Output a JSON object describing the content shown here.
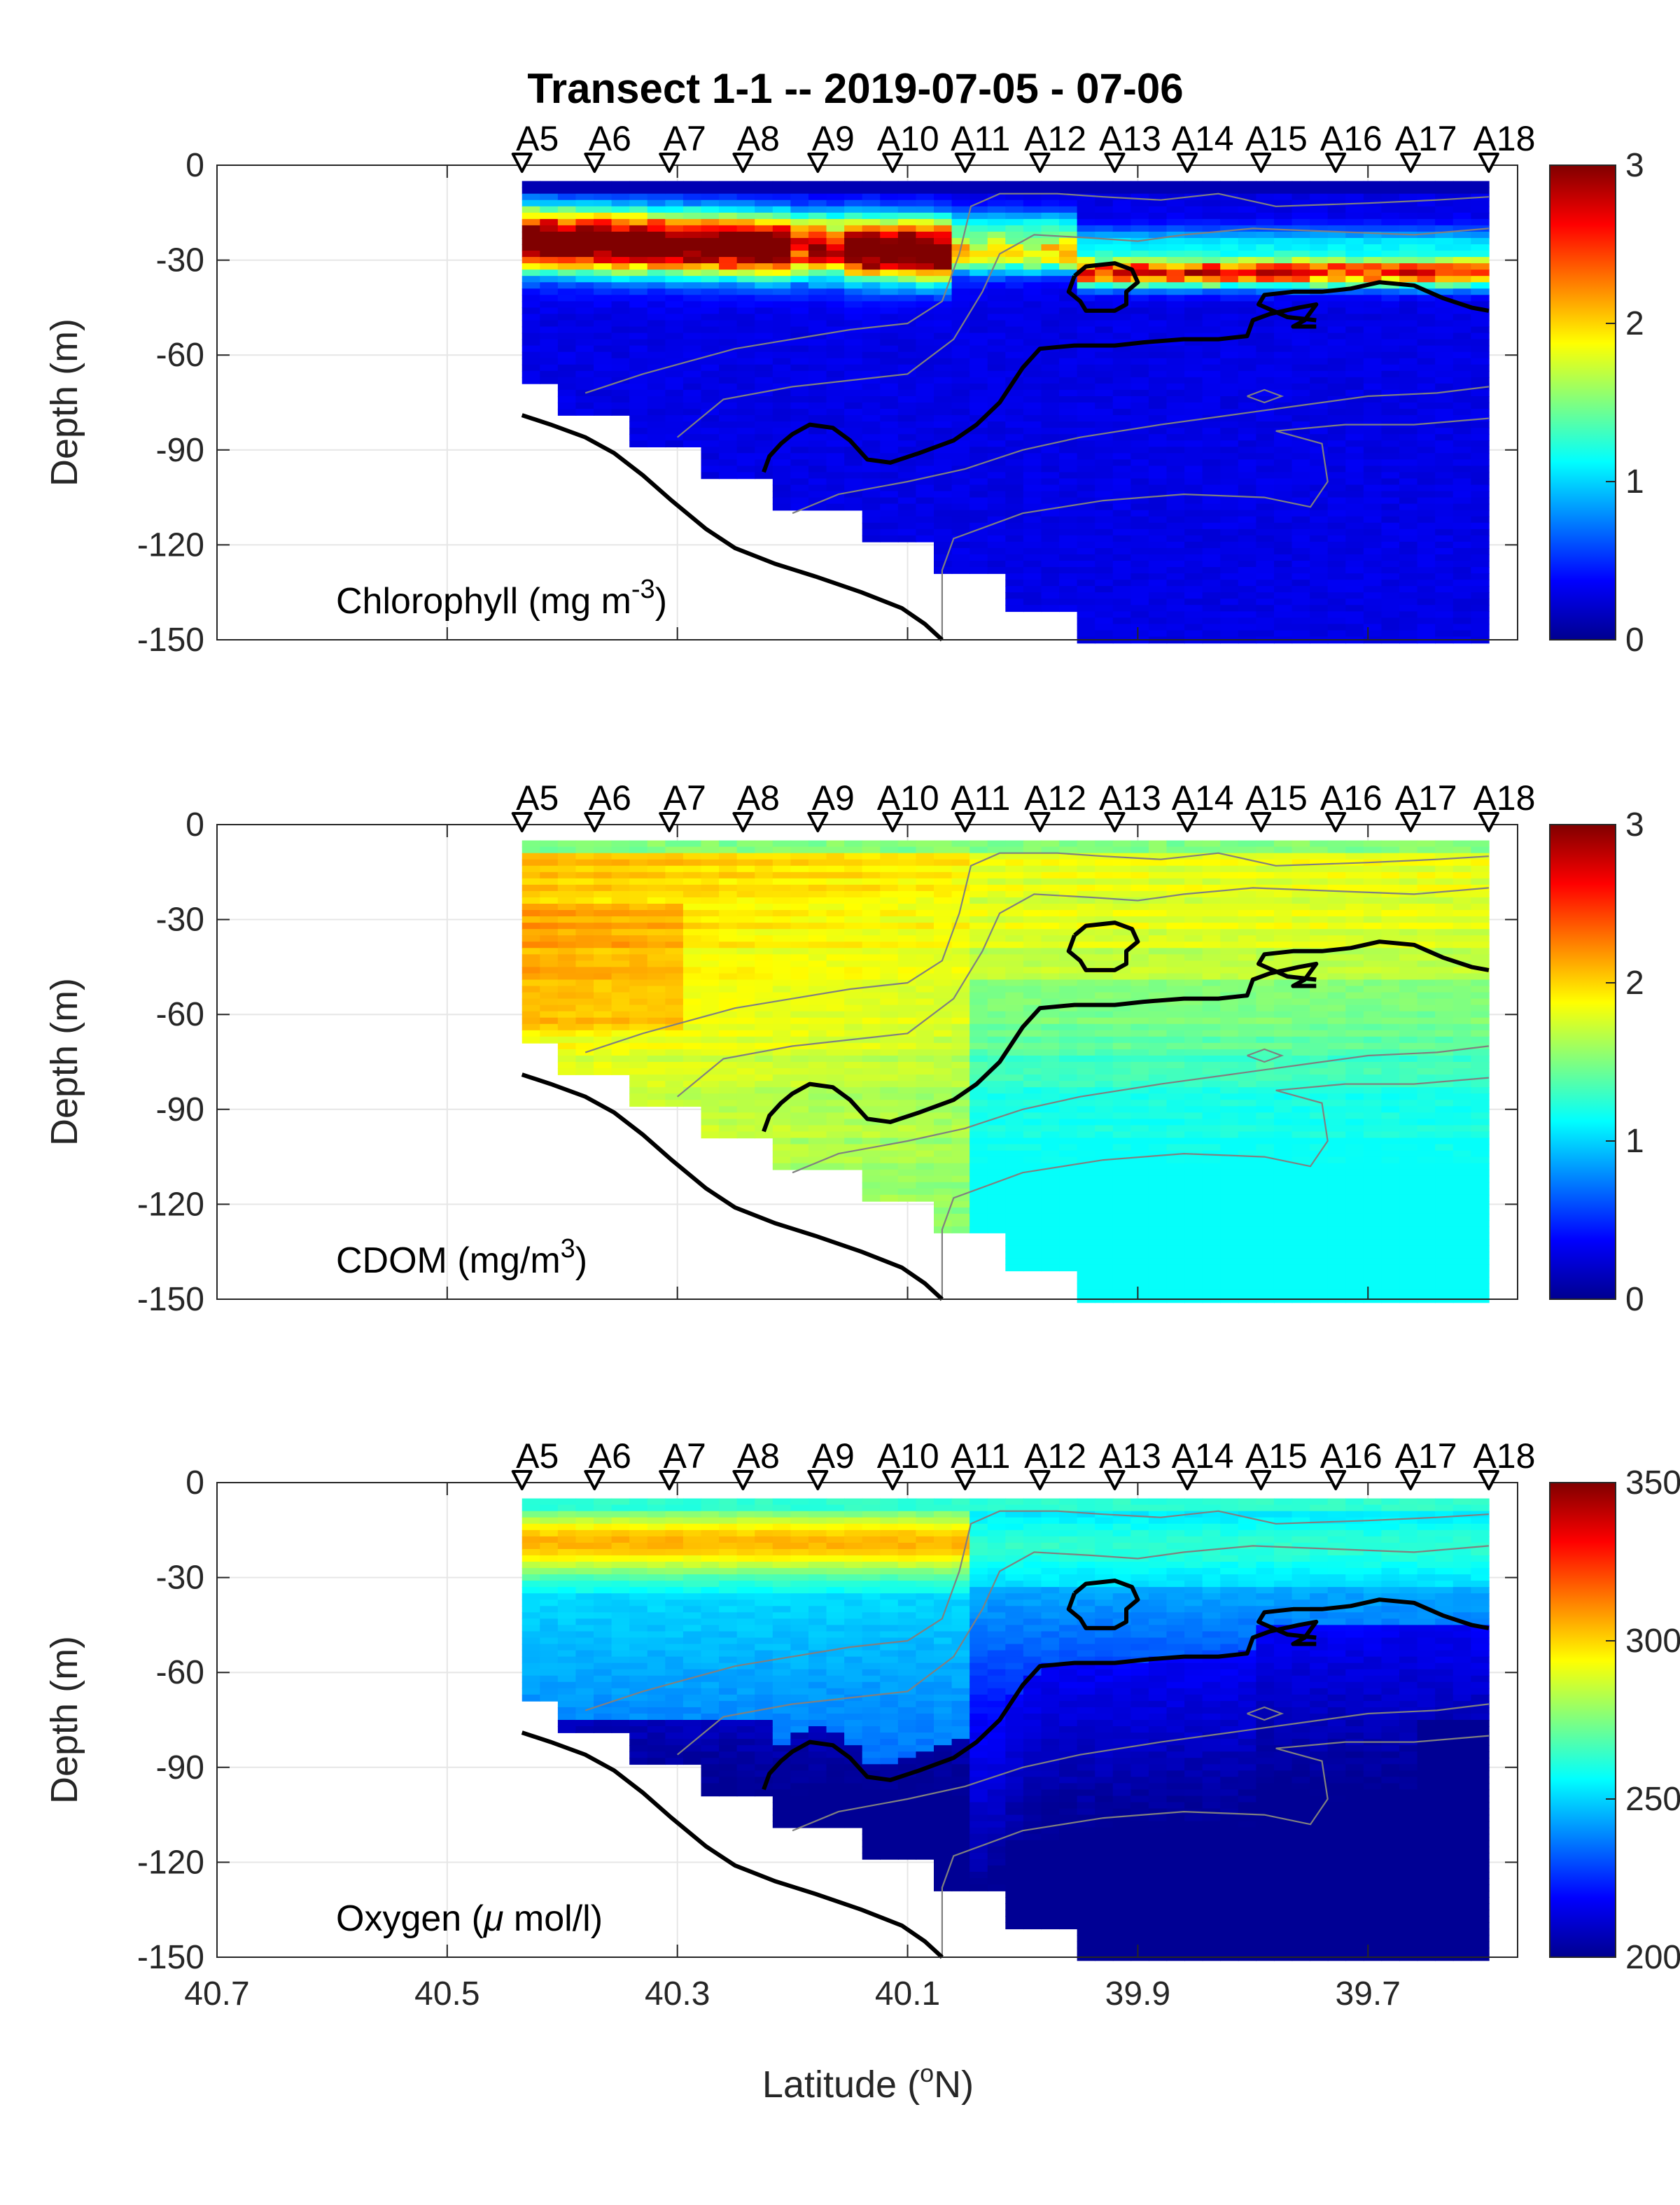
{
  "figure": {
    "title": "Transect 1-1 -- 2019-07-05 - 07-06",
    "xlabel_parts": [
      "Latitude (",
      "o",
      "N)"
    ]
  },
  "colors": {
    "bathymetry": "#000000",
    "isopycnal_bold": "#000000",
    "isoline_thin": "#808080",
    "grid": "#e6e6e6",
    "axes": "#262626",
    "colormap": "jet"
  },
  "chart_data": [
    {
      "type": "heatmap",
      "panel_label_parts": [
        "Chlorophyll (mg m",
        "-3",
        ")"
      ],
      "ylabel": "Depth (m)",
      "xlim": [
        39.57,
        40.7
      ],
      "x_reversed": true,
      "ylim": [
        -150,
        0
      ],
      "xticks": [
        "40.7",
        "40.5",
        "40.3",
        "40.1",
        "39.9",
        "39.7"
      ],
      "yticks": [
        "0",
        "-30",
        "-60",
        "-90",
        "-120",
        "-150"
      ],
      "grid": true,
      "colorbar": {
        "min": 0,
        "max": 3,
        "ticks": [
          "0",
          "1",
          "2",
          "3"
        ]
      },
      "field_profile": "chlorophyll"
    },
    {
      "type": "heatmap",
      "panel_label_parts": [
        "CDOM (mg/m",
        "3",
        ")"
      ],
      "ylabel": "Depth (m)",
      "xlim": [
        39.57,
        40.7
      ],
      "x_reversed": true,
      "ylim": [
        -150,
        0
      ],
      "xticks": [
        "40.7",
        "40.5",
        "40.3",
        "40.1",
        "39.9",
        "39.7"
      ],
      "yticks": [
        "0",
        "-30",
        "-60",
        "-90",
        "-120",
        "-150"
      ],
      "grid": true,
      "colorbar": {
        "min": 0,
        "max": 3,
        "ticks": [
          "0",
          "1",
          "2",
          "3"
        ]
      },
      "field_profile": "cdom"
    },
    {
      "type": "heatmap",
      "panel_label_parts": [
        "Oxygen (",
        "μ",
        " mol/l)"
      ],
      "ylabel": "Depth (m)",
      "xlabel": "Latitude (°N)",
      "xlim": [
        39.57,
        40.7
      ],
      "x_reversed": true,
      "ylim": [
        -150,
        0
      ],
      "xticks": [
        "40.7",
        "40.5",
        "40.3",
        "40.1",
        "39.9",
        "39.7"
      ],
      "yticks": [
        "0",
        "-30",
        "-60",
        "-90",
        "-120",
        "-150"
      ],
      "grid": true,
      "colorbar": {
        "min": 200,
        "max": 350,
        "ticks": [
          "200",
          "250",
          "300",
          "350"
        ]
      },
      "field_profile": "oxygen"
    }
  ],
  "stations": [
    {
      "name": "A5",
      "lat": 40.435
    },
    {
      "name": "A6",
      "lat": 40.372
    },
    {
      "name": "A7",
      "lat": 40.307
    },
    {
      "name": "A8",
      "lat": 40.243
    },
    {
      "name": "A9",
      "lat": 40.178
    },
    {
      "name": "A10",
      "lat": 40.113
    },
    {
      "name": "A11",
      "lat": 40.05
    },
    {
      "name": "A12",
      "lat": 39.985
    },
    {
      "name": "A13",
      "lat": 39.92
    },
    {
      "name": "A14",
      "lat": 39.857
    },
    {
      "name": "A15",
      "lat": 39.793
    },
    {
      "name": "A16",
      "lat": 39.728
    },
    {
      "name": "A17",
      "lat": 39.663
    },
    {
      "name": "A18",
      "lat": 39.595
    }
  ],
  "cast_max_depth": [
    -68,
    -78,
    -88,
    -98,
    -108,
    -118,
    -128,
    -140,
    -150,
    -150,
    -150,
    -150,
    -150,
    -150
  ],
  "bathymetry": [
    {
      "lat": 40.435,
      "depth": -79
    },
    {
      "lat": 40.41,
      "depth": -82
    },
    {
      "lat": 40.38,
      "depth": -86
    },
    {
      "lat": 40.355,
      "depth": -91
    },
    {
      "lat": 40.33,
      "depth": -98
    },
    {
      "lat": 40.305,
      "depth": -106
    },
    {
      "lat": 40.275,
      "depth": -115
    },
    {
      "lat": 40.25,
      "depth": -121
    },
    {
      "lat": 40.215,
      "depth": -126
    },
    {
      "lat": 40.18,
      "depth": -130
    },
    {
      "lat": 40.14,
      "depth": -135
    },
    {
      "lat": 40.105,
      "depth": -140
    },
    {
      "lat": 40.085,
      "depth": -145
    },
    {
      "lat": 40.07,
      "depth": -150
    }
  ],
  "isopycnal_main": [
    {
      "lat": 40.225,
      "depth": -97
    },
    {
      "lat": 40.22,
      "depth": -92
    },
    {
      "lat": 40.21,
      "depth": -88
    },
    {
      "lat": 40.2,
      "depth": -85
    },
    {
      "lat": 40.185,
      "depth": -82
    },
    {
      "lat": 40.165,
      "depth": -83
    },
    {
      "lat": 40.15,
      "depth": -87
    },
    {
      "lat": 40.135,
      "depth": -93
    },
    {
      "lat": 40.115,
      "depth": -94
    },
    {
      "lat": 40.09,
      "depth": -91
    },
    {
      "lat": 40.06,
      "depth": -87
    },
    {
      "lat": 40.04,
      "depth": -82
    },
    {
      "lat": 40.02,
      "depth": -75
    },
    {
      "lat": 40.0,
      "depth": -64
    },
    {
      "lat": 39.985,
      "depth": -58
    },
    {
      "lat": 39.955,
      "depth": -57
    },
    {
      "lat": 39.92,
      "depth": -57
    },
    {
      "lat": 39.895,
      "depth": -56
    },
    {
      "lat": 39.86,
      "depth": -55
    },
    {
      "lat": 39.83,
      "depth": -55
    },
    {
      "lat": 39.805,
      "depth": -54
    },
    {
      "lat": 39.8,
      "depth": -49
    },
    {
      "lat": 39.785,
      "depth": -47
    },
    {
      "lat": 39.76,
      "depth": -45
    },
    {
      "lat": 39.745,
      "depth": -44
    },
    {
      "lat": 39.755,
      "depth": -49
    },
    {
      "lat": 39.765,
      "depth": -51
    },
    {
      "lat": 39.745,
      "depth": -51
    }
  ],
  "isopycnal_top": [
    {
      "lat": 39.745,
      "depth": -49
    },
    {
      "lat": 39.77,
      "depth": -48
    },
    {
      "lat": 39.795,
      "depth": -44
    },
    {
      "lat": 39.79,
      "depth": -41
    },
    {
      "lat": 39.765,
      "depth": -40
    },
    {
      "lat": 39.74,
      "depth": -40
    },
    {
      "lat": 39.715,
      "depth": -39
    },
    {
      "lat": 39.69,
      "depth": -37
    },
    {
      "lat": 39.66,
      "depth": -38
    },
    {
      "lat": 39.635,
      "depth": -42
    },
    {
      "lat": 39.61,
      "depth": -45
    },
    {
      "lat": 39.595,
      "depth": -46
    }
  ],
  "isopycnal_loop": [
    {
      "lat": 39.955,
      "depth": -35
    },
    {
      "lat": 39.945,
      "depth": -32
    },
    {
      "lat": 39.92,
      "depth": -31
    },
    {
      "lat": 39.905,
      "depth": -33
    },
    {
      "lat": 39.9,
      "depth": -37
    },
    {
      "lat": 39.91,
      "depth": -40
    },
    {
      "lat": 39.91,
      "depth": -44
    },
    {
      "lat": 39.92,
      "depth": -46
    },
    {
      "lat": 39.945,
      "depth": -46
    },
    {
      "lat": 39.95,
      "depth": -43
    },
    {
      "lat": 39.96,
      "depth": -40
    },
    {
      "lat": 39.955,
      "depth": -35
    }
  ],
  "isolines_thin": [
    [
      {
        "lat": 40.38,
        "depth": -72
      },
      {
        "lat": 40.33,
        "depth": -66
      },
      {
        "lat": 40.29,
        "depth": -62
      },
      {
        "lat": 40.25,
        "depth": -58
      },
      {
        "lat": 40.2,
        "depth": -55
      },
      {
        "lat": 40.15,
        "depth": -52
      },
      {
        "lat": 40.1,
        "depth": -50
      },
      {
        "lat": 40.07,
        "depth": -43
      },
      {
        "lat": 40.055,
        "depth": -28
      },
      {
        "lat": 40.045,
        "depth": -13
      },
      {
        "lat": 40.02,
        "depth": -9
      },
      {
        "lat": 39.97,
        "depth": -9
      },
      {
        "lat": 39.93,
        "depth": -10
      },
      {
        "lat": 39.88,
        "depth": -11
      },
      {
        "lat": 39.83,
        "depth": -9
      },
      {
        "lat": 39.78,
        "depth": -13
      },
      {
        "lat": 39.7,
        "depth": -12
      },
      {
        "lat": 39.64,
        "depth": -11
      },
      {
        "lat": 39.595,
        "depth": -10
      }
    ],
    [
      {
        "lat": 40.3,
        "depth": -86
      },
      {
        "lat": 40.26,
        "depth": -74
      },
      {
        "lat": 40.2,
        "depth": -70
      },
      {
        "lat": 40.15,
        "depth": -68
      },
      {
        "lat": 40.1,
        "depth": -66
      },
      {
        "lat": 40.06,
        "depth": -55
      },
      {
        "lat": 40.035,
        "depth": -40
      },
      {
        "lat": 40.02,
        "depth": -28
      },
      {
        "lat": 39.99,
        "depth": -22
      },
      {
        "lat": 39.94,
        "depth": -23
      },
      {
        "lat": 39.9,
        "depth": -24
      },
      {
        "lat": 39.86,
        "depth": -22
      },
      {
        "lat": 39.8,
        "depth": -20
      },
      {
        "lat": 39.73,
        "depth": -21
      },
      {
        "lat": 39.66,
        "depth": -22
      },
      {
        "lat": 39.595,
        "depth": -20
      }
    ],
    [
      {
        "lat": 40.2,
        "depth": -110
      },
      {
        "lat": 40.16,
        "depth": -104
      },
      {
        "lat": 40.1,
        "depth": -100
      },
      {
        "lat": 40.05,
        "depth": -96
      },
      {
        "lat": 40.0,
        "depth": -90
      },
      {
        "lat": 39.95,
        "depth": -86
      },
      {
        "lat": 39.88,
        "depth": -82
      },
      {
        "lat": 39.82,
        "depth": -79
      },
      {
        "lat": 39.76,
        "depth": -76
      },
      {
        "lat": 39.7,
        "depth": -73
      },
      {
        "lat": 39.64,
        "depth": -72
      },
      {
        "lat": 39.595,
        "depth": -70
      }
    ],
    [
      {
        "lat": 40.07,
        "depth": -150
      },
      {
        "lat": 40.07,
        "depth": -128
      },
      {
        "lat": 40.06,
        "depth": -118
      },
      {
        "lat": 40.0,
        "depth": -110
      },
      {
        "lat": 39.93,
        "depth": -106
      },
      {
        "lat": 39.86,
        "depth": -104
      },
      {
        "lat": 39.79,
        "depth": -105
      },
      {
        "lat": 39.75,
        "depth": -108
      },
      {
        "lat": 39.735,
        "depth": -100
      },
      {
        "lat": 39.74,
        "depth": -88
      },
      {
        "lat": 39.78,
        "depth": -84
      },
      {
        "lat": 39.72,
        "depth": -82
      },
      {
        "lat": 39.66,
        "depth": -82
      },
      {
        "lat": 39.595,
        "depth": -80
      }
    ],
    [
      {
        "lat": 39.805,
        "depth": -73
      },
      {
        "lat": 39.79,
        "depth": -71
      },
      {
        "lat": 39.775,
        "depth": -73
      },
      {
        "lat": 39.79,
        "depth": -75
      },
      {
        "lat": 39.805,
        "depth": -73
      }
    ]
  ]
}
